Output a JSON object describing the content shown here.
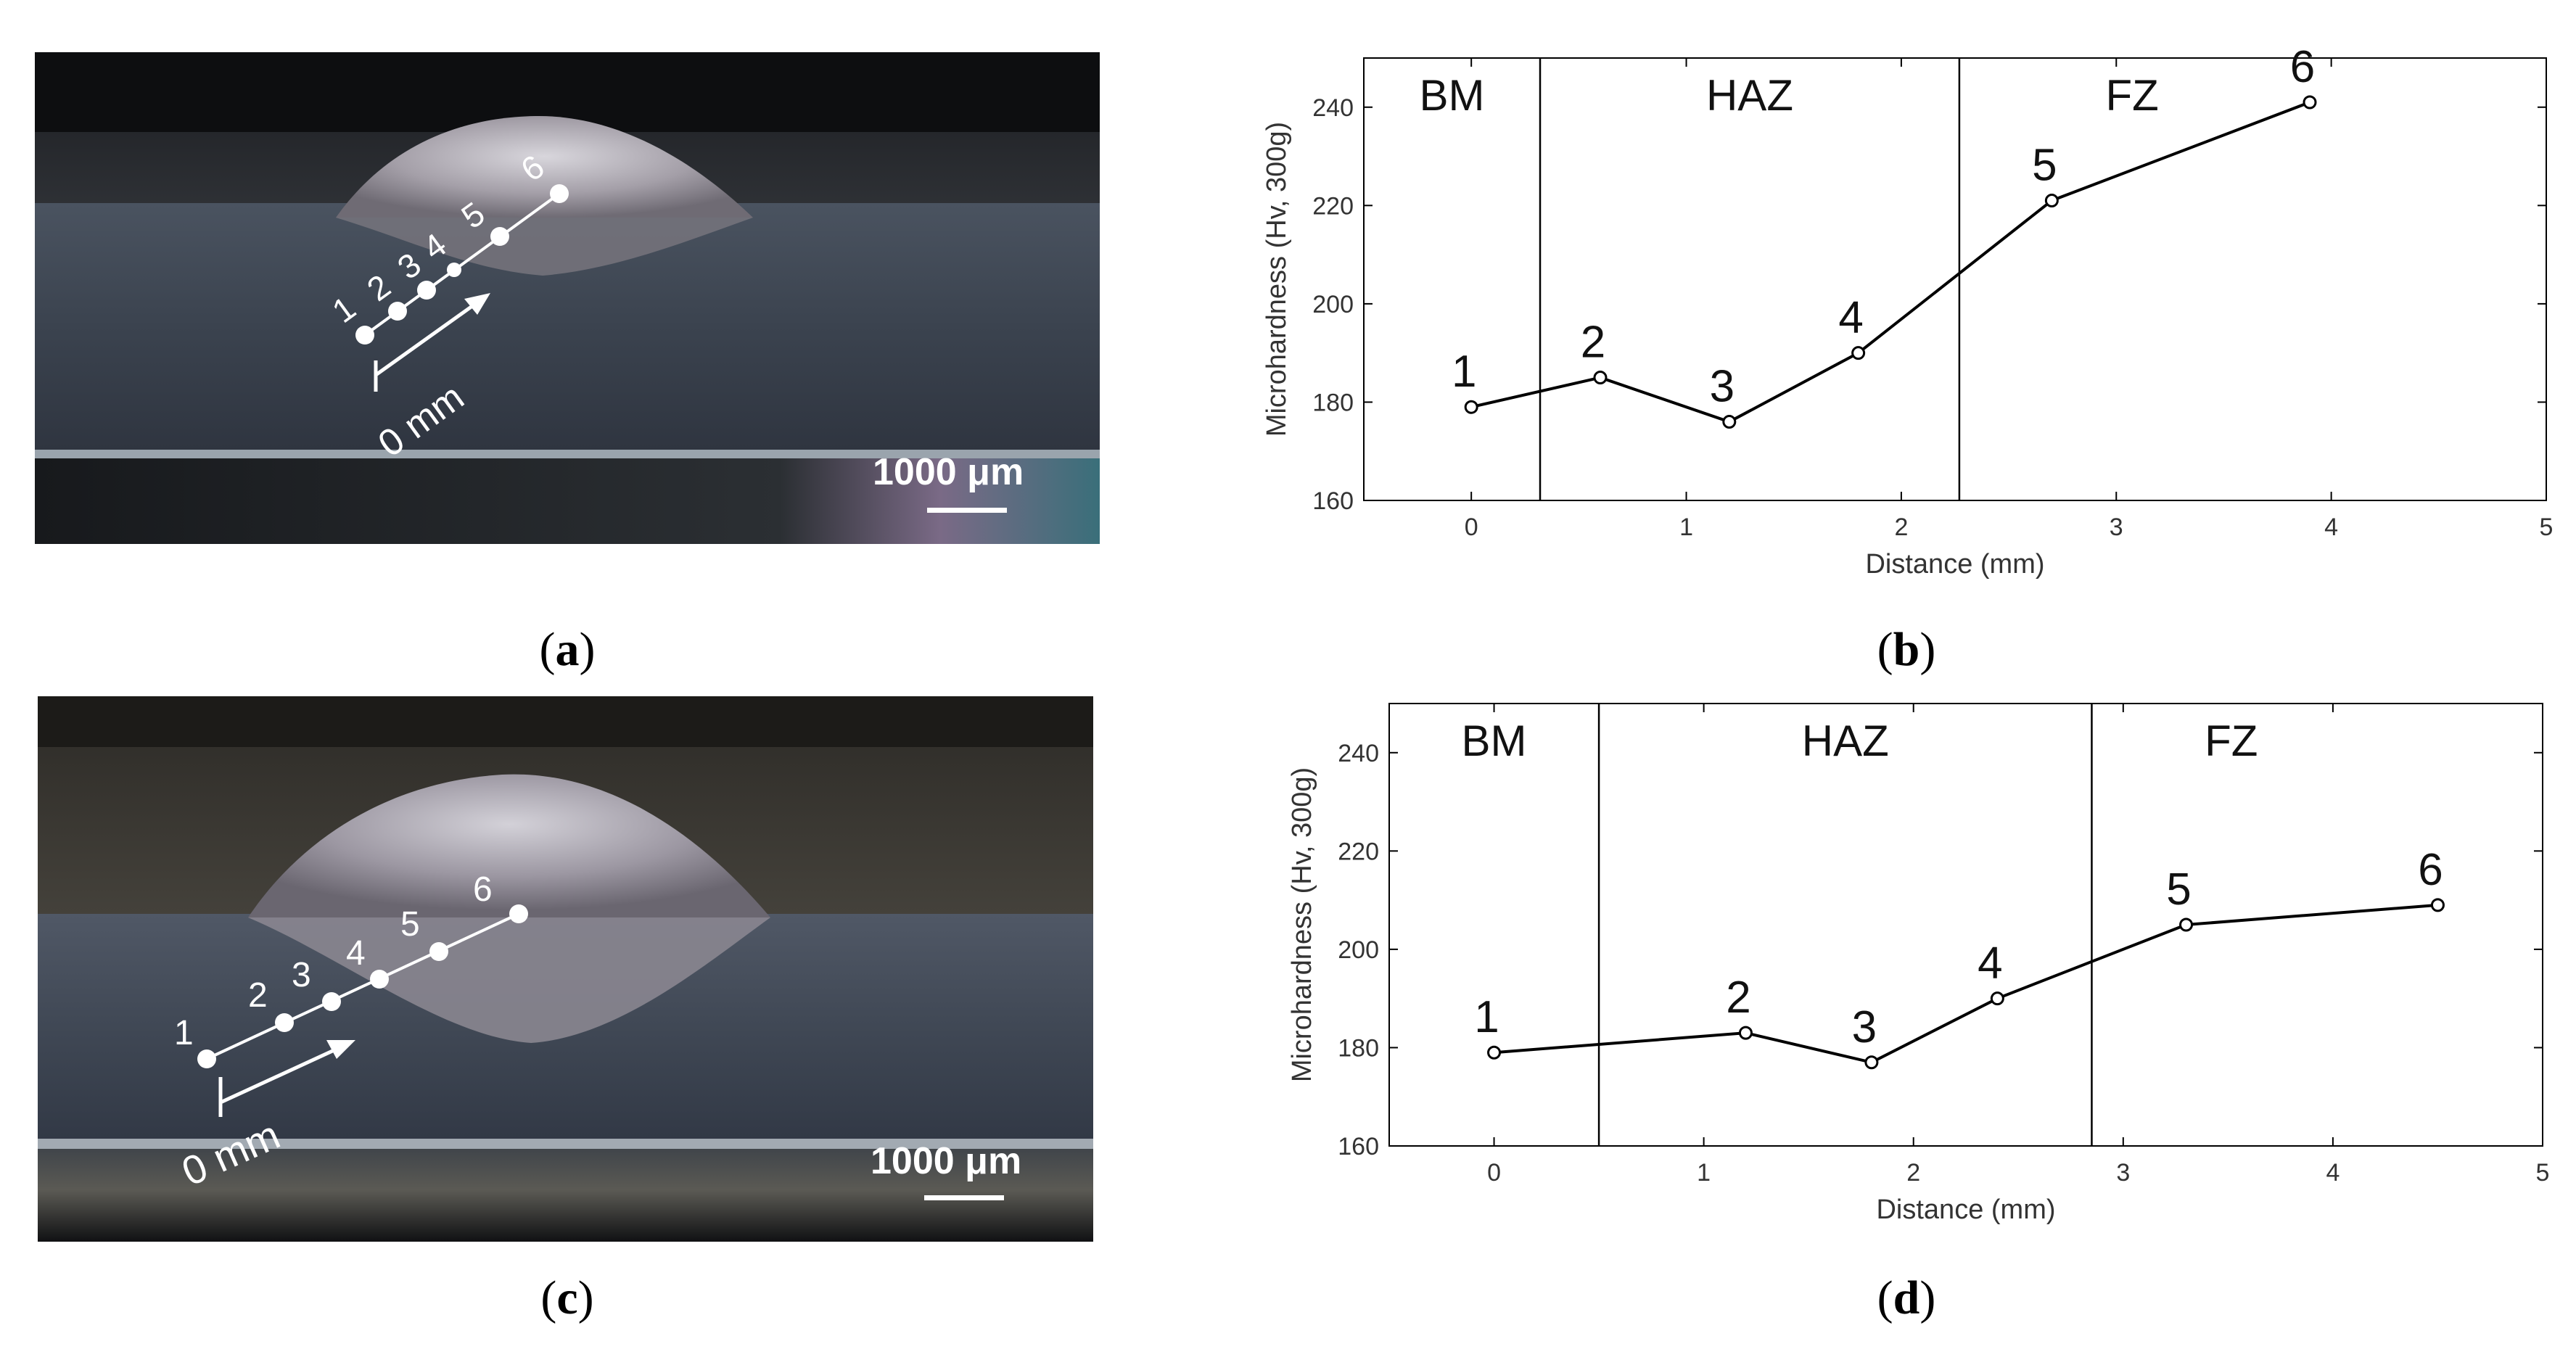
{
  "panels": [
    {
      "id": "a",
      "type": "micrograph",
      "point_labels": [
        "1",
        "2",
        "3",
        "4",
        "5",
        "6"
      ],
      "origin_label": "0 mm",
      "scale_bar_label": "1000 μm",
      "caption_letter": "a"
    },
    {
      "id": "b",
      "type": "chart",
      "caption_letter": "b"
    },
    {
      "id": "c",
      "type": "micrograph",
      "point_labels": [
        "1",
        "2",
        "3",
        "4",
        "5",
        "6"
      ],
      "origin_label": "0 mm",
      "scale_bar_label": "1000 μm",
      "caption_letter": "c"
    },
    {
      "id": "d",
      "type": "chart",
      "caption_letter": "d"
    }
  ],
  "chart_data": [
    {
      "type": "line",
      "panel": "b",
      "xlabel": "Distance (mm)",
      "ylabel": "Microhardness (Hv, 300g)",
      "xlim": [
        -0.5,
        5
      ],
      "ylim": [
        160,
        250
      ],
      "xticks": [
        0,
        1,
        2,
        3,
        4,
        5
      ],
      "yticks": [
        160,
        180,
        200,
        220,
        240
      ],
      "x": [
        0,
        0.6,
        1.2,
        1.8,
        2.7,
        3.9
      ],
      "y": [
        179,
        185,
        176,
        190,
        221,
        241
      ],
      "point_labels": [
        "1",
        "2",
        "3",
        "4",
        "5",
        "6"
      ],
      "zone_boundaries": [
        0.32,
        2.27
      ],
      "zones": [
        "BM",
        "HAZ",
        "FZ"
      ],
      "grid": false,
      "line_color": "#000000"
    },
    {
      "type": "line",
      "panel": "d",
      "xlabel": "Distance (mm)",
      "ylabel": "Microhardness (Hv, 300g)",
      "xlim": [
        -0.5,
        5
      ],
      "ylim": [
        160,
        250
      ],
      "xticks": [
        0,
        1,
        2,
        3,
        4,
        5
      ],
      "yticks": [
        160,
        180,
        200,
        220,
        240
      ],
      "x": [
        0,
        1.2,
        1.8,
        2.4,
        3.3,
        4.5
      ],
      "y": [
        179,
        183,
        177,
        190,
        205,
        209
      ],
      "point_labels": [
        "1",
        "2",
        "3",
        "4",
        "5",
        "6"
      ],
      "zone_boundaries": [
        0.5,
        2.85
      ],
      "zones": [
        "BM",
        "HAZ",
        "FZ"
      ],
      "grid": false,
      "line_color": "#000000"
    }
  ]
}
